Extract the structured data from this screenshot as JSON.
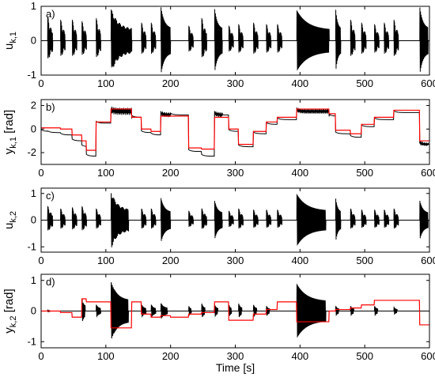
{
  "chart_data": [
    {
      "type": "line",
      "panel_label": "a)",
      "ylabel_main": "u",
      "ylabel_sub": "k,1",
      "xlim": [
        0,
        600
      ],
      "ylim": [
        -1,
        1
      ],
      "x_ticks": [
        0,
        100,
        200,
        300,
        400,
        500,
        600
      ],
      "x_tick_labels": [
        "0",
        "100",
        "200",
        "300",
        "400",
        "500",
        "600"
      ],
      "y_ticks": [
        -1,
        0,
        1
      ],
      "y_tick_labels": [
        "-1",
        "0",
        "1"
      ],
      "series": [
        {
          "color": "#000000",
          "segments": [
            [
              0,
              150,
              0
            ],
            [
              150,
              270,
              0
            ],
            [
              270,
              340,
              0
            ],
            [
              340,
              360,
              0
            ],
            [
              360,
              450,
              0
            ],
            [
              450,
              600,
              0
            ]
          ],
          "bursts": [
            {
              "start": 10,
              "end": 18,
              "amp": 0.8,
              "period": 0.8
            },
            {
              "start": 30,
              "end": 37,
              "amp": 0.7,
              "period": 0.8
            },
            {
              "start": 48,
              "end": 55,
              "amp": 0.7,
              "period": 0.8
            },
            {
              "start": 63,
              "end": 70,
              "amp": 0.65,
              "period": 0.8
            },
            {
              "start": 85,
              "end": 92,
              "amp": 0.75,
              "period": 0.8
            },
            {
              "start": 108,
              "end": 140,
              "amp": 0.95,
              "period": 1.2
            },
            {
              "start": 155,
              "end": 162,
              "amp": 0.6,
              "period": 0.8
            },
            {
              "start": 170,
              "end": 177,
              "amp": 0.6,
              "period": 0.8
            },
            {
              "start": 185,
              "end": 200,
              "amp": 1.0,
              "period": 1.0
            },
            {
              "start": 228,
              "end": 235,
              "amp": 0.5,
              "period": 0.8
            },
            {
              "start": 248,
              "end": 256,
              "amp": 0.75,
              "period": 0.8
            },
            {
              "start": 268,
              "end": 280,
              "amp": 0.95,
              "period": 1.0
            },
            {
              "start": 290,
              "end": 297,
              "amp": 0.5,
              "period": 0.8
            },
            {
              "start": 305,
              "end": 312,
              "amp": 0.55,
              "period": 0.8
            },
            {
              "start": 328,
              "end": 335,
              "amp": 0.6,
              "period": 0.8
            },
            {
              "start": 348,
              "end": 355,
              "amp": 0.55,
              "period": 0.8
            },
            {
              "start": 365,
              "end": 372,
              "amp": 0.55,
              "period": 0.8
            },
            {
              "start": 395,
              "end": 445,
              "amp": 1.0,
              "period": 1.5
            },
            {
              "start": 455,
              "end": 463,
              "amp": 0.95,
              "period": 1.0
            },
            {
              "start": 478,
              "end": 485,
              "amp": 0.7,
              "period": 0.8
            },
            {
              "start": 495,
              "end": 502,
              "amp": 0.6,
              "period": 0.8
            },
            {
              "start": 515,
              "end": 522,
              "amp": 0.55,
              "period": 0.8
            },
            {
              "start": 530,
              "end": 537,
              "amp": 0.6,
              "period": 0.8
            },
            {
              "start": 545,
              "end": 552,
              "amp": 0.7,
              "period": 0.8
            },
            {
              "start": 585,
              "end": 598,
              "amp": 1.0,
              "period": 1.0
            }
          ]
        }
      ]
    },
    {
      "type": "line",
      "panel_label": "b)",
      "ylabel_main": "y",
      "ylabel_sub": "k,1",
      "ylabel_unit": "[rad]",
      "xlim": [
        0,
        600
      ],
      "ylim": [
        -3,
        2.5
      ],
      "x_ticks": [
        0,
        100,
        200,
        300,
        400,
        500,
        600
      ],
      "x_tick_labels": [
        "0",
        "100",
        "200",
        "300",
        "400",
        "500",
        "600"
      ],
      "y_ticks": [
        -2,
        0,
        2
      ],
      "y_tick_labels": [
        "-2",
        "0",
        "2"
      ],
      "series": [
        {
          "color": "#000000",
          "steps": [
            [
              0,
              -0.2
            ],
            [
              10,
              -0.3
            ],
            [
              30,
              -0.5
            ],
            [
              48,
              -1.0
            ],
            [
              63,
              -1.5
            ],
            [
              70,
              -2.3
            ],
            [
              85,
              0.5
            ],
            [
              108,
              1.5
            ],
            [
              140,
              1.0
            ],
            [
              155,
              -0.3
            ],
            [
              170,
              -0.5
            ],
            [
              185,
              1.2
            ],
            [
              200,
              1.2
            ],
            [
              228,
              -1.9
            ],
            [
              248,
              -2.3
            ],
            [
              268,
              1.2
            ],
            [
              290,
              -0.2
            ],
            [
              305,
              -1.5
            ],
            [
              328,
              -0.4
            ],
            [
              348,
              0.4
            ],
            [
              365,
              0.8
            ],
            [
              395,
              1.5
            ],
            [
              445,
              1.1
            ],
            [
              455,
              -0.4
            ],
            [
              478,
              -0.7
            ],
            [
              495,
              0.2
            ],
            [
              515,
              0.8
            ],
            [
              545,
              1.4
            ],
            [
              585,
              -1.3
            ]
          ],
          "burst_ranges": [
            [
              108,
              140,
              0.3
            ],
            [
              185,
              200,
              0.2
            ],
            [
              268,
              280,
              0.2
            ],
            [
              395,
              445,
              0.2
            ],
            [
              585,
              598,
              0.15
            ]
          ]
        },
        {
          "color": "#ff0000",
          "steps": [
            [
              0,
              0.1
            ],
            [
              30,
              0.0
            ],
            [
              48,
              -0.5
            ],
            [
              63,
              -1.0
            ],
            [
              70,
              -1.8
            ],
            [
              85,
              0.6
            ],
            [
              108,
              1.7
            ],
            [
              140,
              1.0
            ],
            [
              155,
              0.0
            ],
            [
              170,
              -0.2
            ],
            [
              185,
              1.1
            ],
            [
              200,
              1.1
            ],
            [
              228,
              -1.6
            ],
            [
              248,
              -1.7
            ],
            [
              268,
              1.0
            ],
            [
              290,
              0.0
            ],
            [
              305,
              -1.3
            ],
            [
              328,
              -0.2
            ],
            [
              348,
              0.6
            ],
            [
              365,
              1.0
            ],
            [
              395,
              1.7
            ],
            [
              445,
              1.3
            ],
            [
              455,
              -0.1
            ],
            [
              478,
              -0.4
            ],
            [
              495,
              0.4
            ],
            [
              515,
              1.0
            ],
            [
              545,
              1.6
            ],
            [
              585,
              -1.0
            ]
          ]
        }
      ]
    },
    {
      "type": "line",
      "panel_label": "c)",
      "ylabel_main": "u",
      "ylabel_sub": "k,2",
      "xlim": [
        0,
        600
      ],
      "ylim": [
        -1.2,
        1.2
      ],
      "x_ticks": [
        0,
        100,
        200,
        300,
        400,
        500,
        600
      ],
      "x_tick_labels": [
        "0",
        "100",
        "200",
        "300",
        "400",
        "500",
        "600"
      ],
      "y_ticks": [
        -1,
        0,
        1
      ],
      "y_tick_labels": [
        "-1",
        "0",
        "1"
      ],
      "series": [
        {
          "color": "#000000",
          "bursts": [
            {
              "start": 10,
              "end": 18,
              "amp": 0.6,
              "period": 0.8
            },
            {
              "start": 30,
              "end": 37,
              "amp": 0.5,
              "period": 0.8
            },
            {
              "start": 48,
              "end": 55,
              "amp": 0.55,
              "period": 0.8
            },
            {
              "start": 63,
              "end": 70,
              "amp": 0.6,
              "period": 0.8
            },
            {
              "start": 85,
              "end": 92,
              "amp": 0.5,
              "period": 0.8
            },
            {
              "start": 108,
              "end": 135,
              "amp": 1.1,
              "period": 1.3
            },
            {
              "start": 155,
              "end": 162,
              "amp": 0.5,
              "period": 0.8
            },
            {
              "start": 170,
              "end": 177,
              "amp": 0.5,
              "period": 0.8
            },
            {
              "start": 185,
              "end": 200,
              "amp": 0.85,
              "period": 1.0
            },
            {
              "start": 228,
              "end": 235,
              "amp": 0.4,
              "period": 0.8
            },
            {
              "start": 248,
              "end": 256,
              "amp": 0.5,
              "period": 0.8
            },
            {
              "start": 268,
              "end": 280,
              "amp": 0.75,
              "period": 1.0
            },
            {
              "start": 290,
              "end": 297,
              "amp": 0.4,
              "period": 0.8
            },
            {
              "start": 305,
              "end": 312,
              "amp": 0.5,
              "period": 0.8
            },
            {
              "start": 328,
              "end": 335,
              "amp": 0.45,
              "period": 0.8
            },
            {
              "start": 348,
              "end": 355,
              "amp": 0.45,
              "period": 0.8
            },
            {
              "start": 365,
              "end": 372,
              "amp": 0.45,
              "period": 0.8
            },
            {
              "start": 395,
              "end": 440,
              "amp": 1.1,
              "period": 1.5
            },
            {
              "start": 455,
              "end": 463,
              "amp": 0.85,
              "period": 1.0
            },
            {
              "start": 478,
              "end": 485,
              "amp": 0.5,
              "period": 0.8
            },
            {
              "start": 495,
              "end": 502,
              "amp": 0.45,
              "period": 0.8
            },
            {
              "start": 515,
              "end": 522,
              "amp": 0.45,
              "period": 0.8
            },
            {
              "start": 530,
              "end": 537,
              "amp": 0.45,
              "period": 0.8
            },
            {
              "start": 545,
              "end": 552,
              "amp": 0.5,
              "period": 0.8
            },
            {
              "start": 585,
              "end": 598,
              "amp": 0.75,
              "period": 1.0
            }
          ]
        }
      ]
    },
    {
      "type": "line",
      "panel_label": "d)",
      "ylabel_main": "y",
      "ylabel_sub": "k,2",
      "ylabel_unit": "[rad]",
      "xlabel": "Time [s]",
      "xlim": [
        0,
        600
      ],
      "ylim": [
        -1.2,
        1.2
      ],
      "x_ticks": [
        0,
        100,
        200,
        300,
        400,
        500,
        600
      ],
      "x_tick_labels": [
        "0",
        "100",
        "200",
        "300",
        "400",
        "500",
        "600"
      ],
      "y_ticks": [
        -1,
        0,
        1
      ],
      "y_tick_labels": [
        "-1",
        "0",
        "1"
      ],
      "series": [
        {
          "color": "#000000",
          "bursts": [
            {
              "start": 10,
              "end": 14,
              "amp": 0.05,
              "period": 1.0
            },
            {
              "start": 63,
              "end": 68,
              "amp": 0.5,
              "period": 1.5
            },
            {
              "start": 85,
              "end": 92,
              "amp": 0.25,
              "period": 1.5
            },
            {
              "start": 108,
              "end": 135,
              "amp": 1.1,
              "period": 1.5
            },
            {
              "start": 155,
              "end": 162,
              "amp": 0.25,
              "period": 1.5
            },
            {
              "start": 170,
              "end": 177,
              "amp": 0.25,
              "period": 1.5
            },
            {
              "start": 185,
              "end": 195,
              "amp": 0.3,
              "period": 1.5
            },
            {
              "start": 228,
              "end": 232,
              "amp": 0.2,
              "period": 1.5
            },
            {
              "start": 248,
              "end": 253,
              "amp": 0.3,
              "period": 1.5
            },
            {
              "start": 268,
              "end": 273,
              "amp": 0.25,
              "period": 1.5
            },
            {
              "start": 290,
              "end": 294,
              "amp": 0.25,
              "period": 1.5
            },
            {
              "start": 305,
              "end": 310,
              "amp": 0.3,
              "period": 1.5
            },
            {
              "start": 328,
              "end": 333,
              "amp": 0.25,
              "period": 1.5
            },
            {
              "start": 348,
              "end": 353,
              "amp": 0.2,
              "period": 1.5
            },
            {
              "start": 395,
              "end": 440,
              "amp": 1.0,
              "period": 1.5
            },
            {
              "start": 455,
              "end": 460,
              "amp": 0.2,
              "period": 1.5
            },
            {
              "start": 478,
              "end": 483,
              "amp": 0.2,
              "period": 1.5
            },
            {
              "start": 515,
              "end": 520,
              "amp": 0.2,
              "period": 1.5
            },
            {
              "start": 545,
              "end": 550,
              "amp": 0.15,
              "period": 1.5
            }
          ]
        },
        {
          "color": "#ff0000",
          "steps": [
            [
              0,
              0.0
            ],
            [
              30,
              -0.05
            ],
            [
              48,
              -0.2
            ],
            [
              63,
              0.4
            ],
            [
              70,
              0.3
            ],
            [
              85,
              0.3
            ],
            [
              108,
              -0.55
            ],
            [
              140,
              0.3
            ],
            [
              155,
              -0.1
            ],
            [
              170,
              -0.2
            ],
            [
              185,
              -0.15
            ],
            [
              200,
              -0.2
            ],
            [
              228,
              -0.1
            ],
            [
              248,
              -0.05
            ],
            [
              268,
              0.3
            ],
            [
              290,
              -0.3
            ],
            [
              305,
              -0.3
            ],
            [
              328,
              -0.1
            ],
            [
              348,
              0.05
            ],
            [
              365,
              0.3
            ],
            [
              395,
              -0.35
            ],
            [
              445,
              0.0
            ],
            [
              455,
              0.05
            ],
            [
              478,
              0.1
            ],
            [
              495,
              0.2
            ],
            [
              515,
              0.35
            ],
            [
              545,
              0.35
            ],
            [
              585,
              -0.45
            ]
          ]
        }
      ]
    }
  ]
}
